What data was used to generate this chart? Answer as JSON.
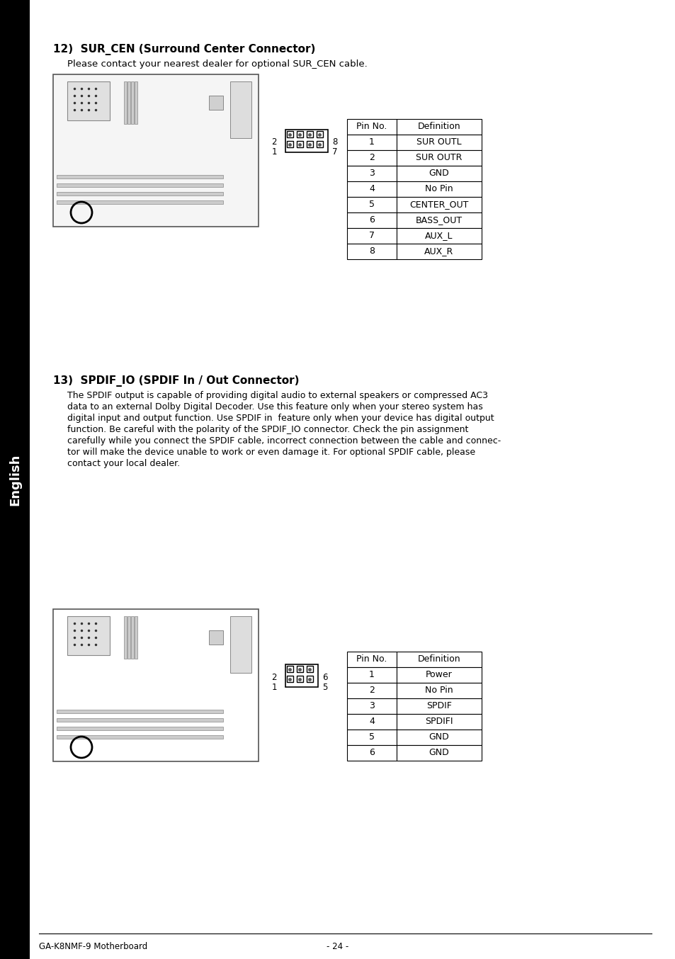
{
  "page_bg": "#ffffff",
  "sidebar_bg": "#000000",
  "sidebar_text": "English",
  "sidebar_text_color": "#ffffff",
  "section12_title": "12)  SUR_CEN (Surround Center Connector)",
  "section12_subtitle": "Please contact your nearest dealer for optional SUR_CEN cable.",
  "section12_table_headers": [
    "Pin No.",
    "Definition"
  ],
  "section12_table_rows": [
    [
      "1",
      "SUR OUTL"
    ],
    [
      "2",
      "SUR OUTR"
    ],
    [
      "3",
      "GND"
    ],
    [
      "4",
      "No Pin"
    ],
    [
      "5",
      "CENTER_OUT"
    ],
    [
      "6",
      "BASS_OUT"
    ],
    [
      "7",
      "AUX_L"
    ],
    [
      "8",
      "AUX_R"
    ]
  ],
  "section12_connector_label_tl": "2",
  "section12_connector_label_bl": "1",
  "section12_connector_label_tr": "8",
  "section12_connector_label_br": "7",
  "section13_title": "13)  SPDIF_IO (SPDIF In / Out Connector)",
  "section13_body": "The SPDIF output is capable of providing digital audio to external speakers or compressed AC3\ndata to an external Dolby Digital Decoder. Use this feature only when your stereo system has\ndigital input and output function. Use SPDIF in  feature only when your device has digital output\nfunction. Be careful with the polarity of the SPDIF_IO connector. Check the pin assignment\ncarefully while you connect the SPDIF cable, incorrect connection between the cable and connec-\ntor will make the device unable to work or even damage it. For optional SPDIF cable, please\ncontact your local dealer.",
  "section13_table_headers": [
    "Pin No.",
    "Definition"
  ],
  "section13_table_rows": [
    [
      "1",
      "Power"
    ],
    [
      "2",
      "No Pin"
    ],
    [
      "3",
      "SPDIF"
    ],
    [
      "4",
      "SPDIFI"
    ],
    [
      "5",
      "GND"
    ],
    [
      "6",
      "GND"
    ]
  ],
  "section13_connector_label_tl": "2",
  "section13_connector_label_bl": "1",
  "section13_connector_label_tr": "6",
  "section13_connector_label_br": "5",
  "footer_left": "GA-K8NMF-9 Motherboard",
  "footer_center": "- 24 -",
  "footer_line_color": "#000000",
  "text_color": "#000000",
  "table_border_color": "#000000"
}
